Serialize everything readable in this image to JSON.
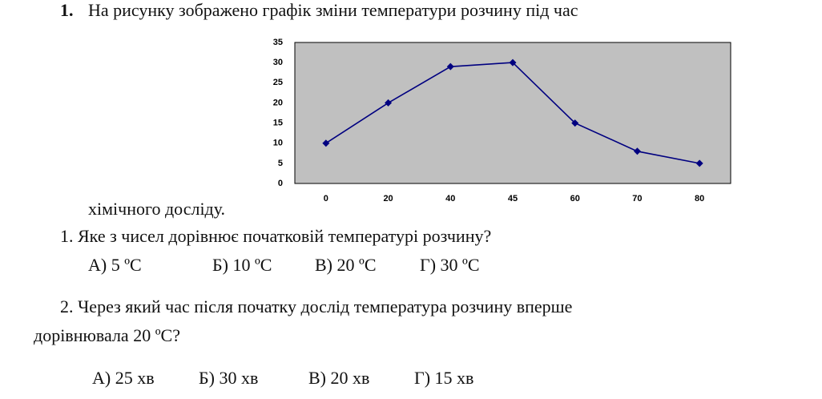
{
  "problem": {
    "number": "1.",
    "intro": [
      "На рисунку зображено графік зміни температури розчину під час",
      "хімічного досліду."
    ],
    "questions": [
      {
        "text": [
          "1. Яке з чисел дорівнює початковій температурі розчину?"
        ],
        "options": [
          "А) 5 ºС",
          "Б) 10 ºС",
          "В) 20 ºС",
          "Г) 30 ºС"
        ]
      },
      {
        "text": [
          "2. Через який час після початку дослід температура розчину вперше",
          "дорівнювала 20 ºС?"
        ],
        "options": [
          "А) 25 хв",
          "Б) 30 хв",
          "В) 20 хв",
          "Г) 15 хв"
        ]
      }
    ]
  },
  "chart_data": {
    "type": "line",
    "categories": [
      "0",
      "20",
      "40",
      "45",
      "60",
      "70",
      "80"
    ],
    "values": [
      10,
      20,
      29,
      30,
      15,
      8,
      5
    ],
    "color": "#000080",
    "ylim": [
      0,
      35
    ],
    "yticks": [
      0,
      5,
      10,
      15,
      20,
      25,
      30,
      35
    ]
  }
}
